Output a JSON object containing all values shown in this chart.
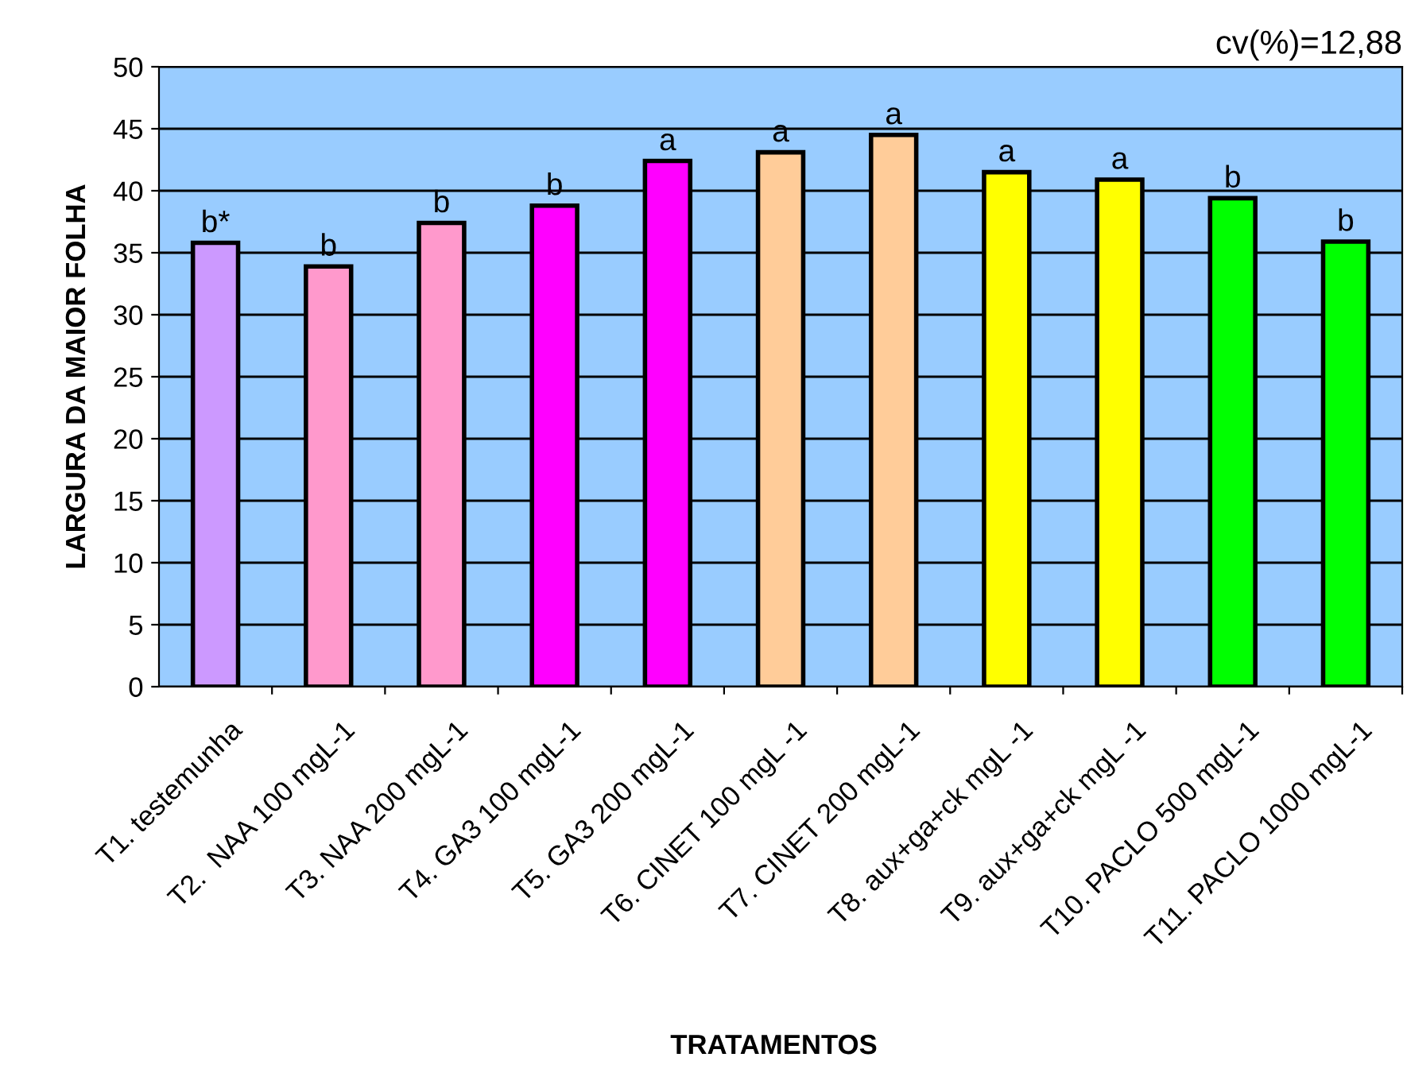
{
  "chart_data": {
    "type": "bar",
    "ylabel": "LARGURA DA MAIOR FOLHA",
    "xlabel": "TRATAMENTOS",
    "categories": [
      "T1. testemunha",
      "T2.  NAA 100 mgL-1",
      "T3. NAA 200 mgL-1",
      "T4. GA3 100 mgL-1",
      "T5. GA3 200 mgL-1",
      "T6. CINET 100 mgL -1",
      "T7. CINET 200 mgL-1",
      "T8. aux+ga+ck mgL -1",
      "T9. aux+ga+ck mgL -1",
      "T10. PACLO 500 mgL-1",
      "T11. PACLO 1000 mgL-1"
    ],
    "values": [
      35.8,
      33.9,
      37.4,
      38.8,
      42.4,
      43.1,
      44.5,
      41.5,
      40.9,
      39.4,
      35.9
    ],
    "colors": [
      "#cc99ff",
      "#ff99cc",
      "#ff99cc",
      "#ff00ff",
      "#ff00ff",
      "#ffcc99",
      "#ffcc99",
      "#ffff00",
      "#ffff00",
      "#00ff00",
      "#00ff00"
    ],
    "ylim": [
      0,
      50
    ],
    "yticks": [
      0,
      5,
      10,
      15,
      20,
      25,
      30,
      35,
      40,
      45,
      50
    ],
    "grid": "y",
    "annotations": [
      "cv(%)=12,88",
      {
        "text": "b*",
        "x": "T1. testemunha",
        "y": 35.8
      },
      {
        "text": "b",
        "x": "T2.  NAA 100 mgL-1",
        "y": 33.9
      },
      {
        "text": "b",
        "x": "T3. NAA 200 mgL-1",
        "y": 37.4
      },
      {
        "text": "b",
        "x": "T4. GA3 100 mgL-1",
        "y": 38.8
      },
      {
        "text": "a",
        "x": "T5. GA3 200 mgL-1",
        "y": 42.4
      },
      {
        "text": "a",
        "x": "T6. CINET 100 mgL -1",
        "y": 43.1
      },
      {
        "text": "a",
        "x": "T7. CINET 200 mgL-1",
        "y": 44.5
      },
      {
        "text": "a",
        "x": "T8. aux+ga+ck mgL -1",
        "y": 41.5
      },
      {
        "text": "a",
        "x": "T9. aux+ga+ck mgL -1",
        "y": 40.9
      },
      {
        "text": "b",
        "x": "T10. PACLO 500 mgL-1",
        "y": 39.4
      },
      {
        "text": "b",
        "x": "T11. PACLO 1000 mgL-1",
        "y": 35.9
      }
    ]
  }
}
